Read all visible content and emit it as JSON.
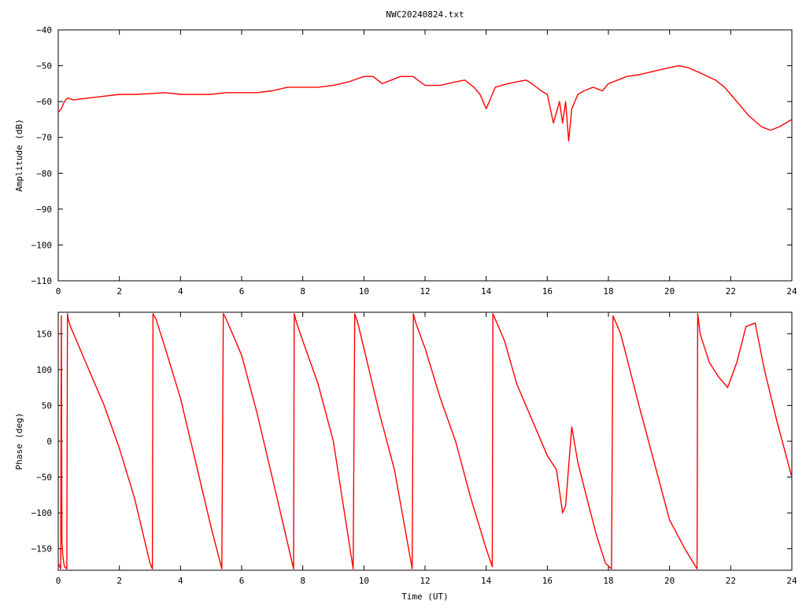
{
  "chart_data": [
    {
      "type": "line",
      "title": "NWC20240824.txt",
      "xlabel": "",
      "ylabel": "Amplitude (dB)",
      "xlim": [
        0,
        24
      ],
      "ylim": [
        -110,
        -40
      ],
      "xticks": [
        "0",
        "2",
        "4",
        "6",
        "8",
        "10",
        "12",
        "14",
        "16",
        "18",
        "20",
        "22",
        "24"
      ],
      "yticks": [
        "−40",
        "−50",
        "−60",
        "−70",
        "−80",
        "−90",
        "−100",
        "−110"
      ],
      "grid": false,
      "line_color": "#ff0000",
      "series": [
        {
          "x": [
            0,
            0.1,
            0.2,
            0.3,
            0.5,
            1,
            1.5,
            2,
            2.5,
            3,
            3.5,
            4,
            4.5,
            5,
            5.5,
            6,
            6.5,
            7,
            7.5,
            8,
            8.5,
            9,
            9.5,
            10,
            10.3,
            10.6,
            10.9,
            11.2,
            11.6,
            12,
            12.5,
            13,
            13.3,
            13.6,
            13.8,
            14,
            14.3,
            14.7,
            15,
            15.3,
            15.5,
            15.8,
            16,
            16.2,
            16.4,
            16.5,
            16.6,
            16.7,
            16.8,
            17,
            17.2,
            17.5,
            17.8,
            18,
            18.3,
            18.6,
            19,
            19.5,
            20,
            20.3,
            20.6,
            21,
            21.5,
            21.8,
            22,
            22.3,
            22.6,
            23,
            23.3,
            23.6,
            24
          ],
          "y": [
            -63,
            -62,
            -60,
            -59,
            -59.5,
            -59,
            -58.5,
            -58,
            -58,
            -57.8,
            -57.5,
            -58,
            -58,
            -58,
            -57.5,
            -57.5,
            -57.5,
            -57,
            -56,
            -56,
            -56,
            -55.5,
            -54.5,
            -53,
            -53,
            -55,
            -54,
            -53,
            -53,
            -55.5,
            -55.5,
            -54.5,
            -54,
            -56,
            -58,
            -62,
            -56,
            -55,
            -54.5,
            -54,
            -55,
            -57,
            -58,
            -66,
            -60,
            -66,
            -60,
            -71,
            -62,
            -58,
            -57,
            -56,
            -57,
            -55,
            -54,
            -53,
            -52.5,
            -51.5,
            -50.5,
            -50,
            -50.5,
            -52,
            -54,
            -56,
            -58,
            -61,
            -64,
            -67,
            -68,
            -67,
            -65
          ]
        }
      ]
    },
    {
      "type": "line",
      "title": "",
      "xlabel": "Time (UT)",
      "ylabel": "Phase (deg)",
      "xlim": [
        0,
        24
      ],
      "ylim": [
        -180,
        180
      ],
      "xticks": [
        "0",
        "2",
        "4",
        "6",
        "8",
        "10",
        "12",
        "14",
        "16",
        "18",
        "20",
        "22",
        "24"
      ],
      "yticks": [
        "150",
        "100",
        "50",
        "0",
        "−50",
        "−100",
        "−150"
      ],
      "grid": false,
      "line_color": "#ff0000",
      "series": [
        {
          "x": [
            0,
            0.08,
            0.1,
            0.12,
            0.15,
            0.2,
            0.28,
            0.3,
            0.33,
            0.4,
            0.6,
            1,
            1.5,
            2,
            2.5,
            3,
            3.08,
            3.1,
            3.2,
            3.5,
            4,
            4.5,
            5,
            5.35,
            5.4,
            5.5,
            6,
            6.5,
            7,
            7.7,
            7.72,
            7.8,
            8,
            8.5,
            9,
            9.65,
            9.7,
            9.8,
            10,
            10.5,
            11,
            11.58,
            11.62,
            11.7,
            12,
            12.5,
            13,
            13.5,
            14,
            14.2,
            14.22,
            14.3,
            14.6,
            15,
            15.5,
            16,
            16.3,
            16.5,
            16.6,
            16.8,
            17,
            17.3,
            17.6,
            17.9,
            18.1,
            18.15,
            18.2,
            18.4,
            18.7,
            19,
            19.5,
            20,
            20.5,
            20.9,
            20.92,
            21,
            21.3,
            21.6,
            21.9,
            22.2,
            22.5,
            22.8,
            23.1,
            23.5,
            24
          ],
          "y": [
            -170,
            -178,
            175,
            -140,
            -160,
            -175,
            -178,
            178,
            170,
            160,
            140,
            100,
            50,
            -10,
            -80,
            -170,
            -178,
            178,
            170,
            130,
            60,
            -30,
            -120,
            -178,
            178,
            170,
            120,
            40,
            -50,
            -178,
            178,
            165,
            140,
            80,
            0,
            -178,
            178,
            165,
            130,
            40,
            -40,
            -178,
            178,
            165,
            130,
            60,
            0,
            -80,
            -150,
            -175,
            178,
            170,
            140,
            80,
            30,
            -20,
            -40,
            -100,
            -90,
            20,
            -30,
            -80,
            -130,
            -170,
            -178,
            175,
            170,
            150,
            100,
            50,
            -30,
            -110,
            -150,
            -178,
            178,
            150,
            110,
            90,
            75,
            110,
            160,
            165,
            100,
            30,
            -50
          ]
        }
      ]
    }
  ]
}
